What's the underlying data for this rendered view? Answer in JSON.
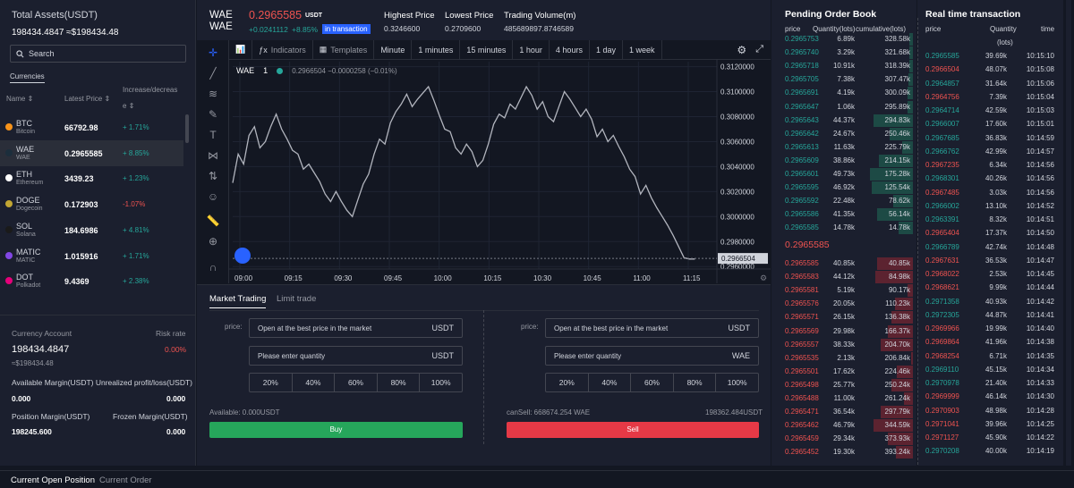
{
  "left": {
    "total_assets_label": "Total Assets(USDT)",
    "total_assets_value": "198434.4847 ≈$198434.48",
    "search_placeholder": "Search",
    "tab_currencies": "Currencies",
    "col_name": "Name",
    "col_latest_price": "Latest Price",
    "col_change_l1": "Increase/decreas",
    "col_change_l2": "e",
    "coins": [
      {
        "sym": "BTC",
        "name": "Bitcoin",
        "price": "66792.98",
        "change": "+ 1.71%",
        "color": "#f7931a",
        "dir": "up"
      },
      {
        "sym": "WAE",
        "name": "WAE",
        "price": "0.2965585",
        "change": "+ 8.85%",
        "color": "#1c2e3c",
        "dir": "up"
      },
      {
        "sym": "ETH",
        "name": "Ethereum",
        "price": "3439.23",
        "change": "+ 1.23%",
        "color": "#ffffff",
        "dir": "up"
      },
      {
        "sym": "DOGE",
        "name": "Dogecoin",
        "price": "0.172903",
        "change": "-1.07%",
        "color": "#c2a633",
        "dir": "dn"
      },
      {
        "sym": "SOL",
        "name": "Solana",
        "price": "184.6986",
        "change": "+ 4.81%",
        "color": "#1a1a1a",
        "dir": "up"
      },
      {
        "sym": "MATIC",
        "name": "MATIC",
        "price": "1.015916",
        "change": "+ 1.71%",
        "color": "#8247e5",
        "dir": "up"
      },
      {
        "sym": "DOT",
        "name": "Polkadot",
        "price": "9.4369",
        "change": "+ 2.38%",
        "color": "#e6007a",
        "dir": "up"
      }
    ],
    "currency_account_label": "Currency Account",
    "risk_rate_label": "Risk rate",
    "account_value": "198434.4847",
    "account_usd": "≈$198434.48",
    "risk_rate_value": "0.00%",
    "avail_margin_label": "Available Margin(USDT) Unrealized profit/loss(USDT)",
    "avail_margin_value": "0.000",
    "unrealized_value": "0.000",
    "position_margin_label": "Position Margin(USDT)",
    "frozen_margin_label": "Frozen Margin(USDT)",
    "position_margin_value": "198245.600",
    "frozen_margin_value": "0.000"
  },
  "header": {
    "pair_line1": "WAE",
    "pair_line2": "WAE",
    "price": "0.2965585",
    "quote": "USDT",
    "change_abs": "+0.0241112",
    "change_pct": "+8.85%",
    "status": "in transaction",
    "high_label": "Highest Price",
    "high_value": "0.3246600",
    "low_label": "Lowest Price",
    "low_value": "0.2709600",
    "vol_label": "Trading Volume(m)",
    "vol_value": "485689897.8746589"
  },
  "toolbar": {
    "indicators": "Indicators",
    "templates": "Templates",
    "intervals": [
      "Minute",
      "1 minutes",
      "15 minutes",
      "1 hour",
      "4 hours",
      "1 day",
      "1 week"
    ]
  },
  "chart_legend": {
    "symbol": "WAE",
    "interval": "1",
    "ohlc": "0.2966504  −0.0000258 (−0.01%)"
  },
  "chart_data": {
    "type": "line",
    "x_ticks": [
      "09:00",
      "09:15",
      "09:30",
      "09:45",
      "10:00",
      "10:15",
      "10:30",
      "10:45",
      "11:00",
      "11:15"
    ],
    "y_ticks": [
      "0.3120000",
      "0.3100000",
      "0.3080000",
      "0.3060000",
      "0.3040000",
      "0.3020000",
      "0.3000000",
      "0.2980000",
      "0.2960000"
    ],
    "ylim": [
      0.2958,
      0.3124
    ],
    "last_price_label": "0.2966504",
    "series": [
      {
        "values": [
          0.3027,
          0.305,
          0.3042,
          0.3065,
          0.3072,
          0.3055,
          0.306,
          0.3072,
          0.3082,
          0.307,
          0.3062,
          0.3053,
          0.305,
          0.3038,
          0.3042,
          0.3035,
          0.3028,
          0.3018,
          0.3012,
          0.302,
          0.3012,
          0.3005,
          0.3,
          0.3013,
          0.3026,
          0.3034,
          0.305,
          0.3062,
          0.3058,
          0.3075,
          0.3084,
          0.309,
          0.3098,
          0.3088,
          0.3094,
          0.3099,
          0.3104,
          0.3093,
          0.3081,
          0.307,
          0.3068,
          0.3055,
          0.305,
          0.3058,
          0.3052,
          0.304,
          0.3045,
          0.3058,
          0.3074,
          0.3082,
          0.3079,
          0.309,
          0.3086,
          0.3095,
          0.3104,
          0.3097,
          0.3086,
          0.3092,
          0.308,
          0.3076,
          0.3088,
          0.31,
          0.3094,
          0.3087,
          0.308,
          0.3086,
          0.3078,
          0.3064,
          0.307,
          0.306,
          0.3065,
          0.3056,
          0.3048,
          0.3038,
          0.3032,
          0.3018,
          0.3025,
          0.3015,
          0.3007,
          0.3,
          0.2993,
          0.2985,
          0.2976,
          0.2967,
          0.2966,
          0.2966
        ]
      }
    ]
  },
  "trade": {
    "tab_market": "Market Trading",
    "tab_limit": "Limit trade",
    "price_label": "price:",
    "best_price_text": "Open at the best price in the market",
    "quantity_placeholder": "Please enter quantity",
    "usdt": "USDT",
    "wae": "WAE",
    "percentages": [
      "20%",
      "40%",
      "60%",
      "80%",
      "100%"
    ],
    "available": "Available: 0.000USDT",
    "can_sell": "canSell: 668674.254 WAE",
    "can_sell_usdt": "198362.484USDT",
    "buy_label": "Buy",
    "sell_label": "Sell",
    "buy_color": "#26a65b",
    "sell_color": "#e53946"
  },
  "orderbook": {
    "title": "Pending Order Book",
    "col_price": "price",
    "col_qty": "Quantity(lots)",
    "col_cum": "cumulative(lots)",
    "mid_price": "0.2965585",
    "bids": [
      [
        "0.2965753",
        "6.89k",
        "328.58k",
        0.05
      ],
      [
        "0.2965740",
        "3.29k",
        "321.68k",
        0.05
      ],
      [
        "0.2965718",
        "10.91k",
        "318.39k",
        0.05
      ],
      [
        "0.2965705",
        "7.38k",
        "307.47k",
        0.06
      ],
      [
        "0.2965691",
        "4.19k",
        "300.09k",
        0.07
      ],
      [
        "0.2965647",
        "1.06k",
        "295.89k",
        0.08
      ],
      [
        "0.2965643",
        "44.37k",
        "294.83k",
        0.55
      ],
      [
        "0.2965642",
        "24.67k",
        "250.46k",
        0.32
      ],
      [
        "0.2965613",
        "11.63k",
        "225.79k",
        0.15
      ],
      [
        "0.2965609",
        "38.86k",
        "214.15k",
        0.47
      ],
      [
        "0.2965601",
        "49.73k",
        "175.28k",
        0.6
      ],
      [
        "0.2965595",
        "46.92k",
        "125.54k",
        0.58
      ],
      [
        "0.2965592",
        "22.48k",
        "78.62k",
        0.28
      ],
      [
        "0.2965586",
        "41.35k",
        "56.14k",
        0.5
      ],
      [
        "0.2965585",
        "14.78k",
        "14.78k",
        0.2
      ]
    ],
    "asks": [
      [
        "0.2965585",
        "40.85k",
        "40.85k",
        0.5
      ],
      [
        "0.2965583",
        "44.12k",
        "84.98k",
        0.52
      ],
      [
        "0.2965581",
        "5.19k",
        "90.17k",
        0.08
      ],
      [
        "0.2965576",
        "20.05k",
        "110.23k",
        0.25
      ],
      [
        "0.2965571",
        "26.15k",
        "136.38k",
        0.3
      ],
      [
        "0.2965569",
        "29.98k",
        "166.37k",
        0.35
      ],
      [
        "0.2965557",
        "38.33k",
        "204.70k",
        0.45
      ],
      [
        "0.2965535",
        "2.13k",
        "206.84k",
        0.03
      ],
      [
        "0.2965501",
        "17.62k",
        "224.46k",
        0.22
      ],
      [
        "0.2965498",
        "25.77k",
        "250.24k",
        0.3
      ],
      [
        "0.2965488",
        "11.00k",
        "261.24k",
        0.13
      ],
      [
        "0.2965471",
        "36.54k",
        "297.79k",
        0.45
      ],
      [
        "0.2965462",
        "46.79k",
        "344.59k",
        0.55
      ],
      [
        "0.2965459",
        "29.34k",
        "373.93k",
        0.35
      ],
      [
        "0.2965452",
        "19.30k",
        "393.24k",
        0.24
      ]
    ]
  },
  "realtime": {
    "title": "Real time transaction",
    "col_price": "price",
    "col_qty": "Quantity",
    "col_qty2": "(lots)",
    "col_time": "time",
    "rows": [
      [
        "0.2965585",
        "39.69k",
        "10:15:10",
        "up"
      ],
      [
        "0.2966504",
        "48.07k",
        "10:15:08",
        "dn"
      ],
      [
        "0.2964857",
        "31.64k",
        "10:15:06",
        "up"
      ],
      [
        "0.2964756",
        "7.39k",
        "10:15:04",
        "dn"
      ],
      [
        "0.2964714",
        "42.59k",
        "10:15:03",
        "up"
      ],
      [
        "0.2966007",
        "17.60k",
        "10:15:01",
        "up"
      ],
      [
        "0.2967685",
        "36.83k",
        "10:14:59",
        "up"
      ],
      [
        "0.2966762",
        "42.99k",
        "10:14:57",
        "up"
      ],
      [
        "0.2967235",
        "6.34k",
        "10:14:56",
        "dn"
      ],
      [
        "0.2968301",
        "40.26k",
        "10:14:56",
        "up"
      ],
      [
        "0.2967485",
        "3.03k",
        "10:14:56",
        "dn"
      ],
      [
        "0.2966002",
        "13.10k",
        "10:14:52",
        "up"
      ],
      [
        "0.2963391",
        "8.32k",
        "10:14:51",
        "up"
      ],
      [
        "0.2965404",
        "17.37k",
        "10:14:50",
        "dn"
      ],
      [
        "0.2966789",
        "42.74k",
        "10:14:48",
        "up"
      ],
      [
        "0.2967631",
        "36.53k",
        "10:14:47",
        "dn"
      ],
      [
        "0.2968022",
        "2.53k",
        "10:14:45",
        "dn"
      ],
      [
        "0.2968621",
        "9.99k",
        "10:14:44",
        "dn"
      ],
      [
        "0.2971358",
        "40.93k",
        "10:14:42",
        "up"
      ],
      [
        "0.2972305",
        "44.87k",
        "10:14:41",
        "up"
      ],
      [
        "0.2969966",
        "19.99k",
        "10:14:40",
        "dn"
      ],
      [
        "0.2969864",
        "41.96k",
        "10:14:38",
        "dn"
      ],
      [
        "0.2968254",
        "6.71k",
        "10:14:35",
        "dn"
      ],
      [
        "0.2969110",
        "45.15k",
        "10:14:34",
        "up"
      ],
      [
        "0.2970978",
        "21.40k",
        "10:14:33",
        "up"
      ],
      [
        "0.2969999",
        "46.14k",
        "10:14:30",
        "dn"
      ],
      [
        "0.2970903",
        "48.98k",
        "10:14:28",
        "dn"
      ],
      [
        "0.2971041",
        "39.96k",
        "10:14:25",
        "dn"
      ],
      [
        "0.2971127",
        "45.90k",
        "10:14:22",
        "dn"
      ],
      [
        "0.2970208",
        "40.00k",
        "10:14:19",
        "up"
      ]
    ]
  },
  "bottom": {
    "tab_open_position": "Current Open Position",
    "tab_current_order": "Current Order"
  }
}
